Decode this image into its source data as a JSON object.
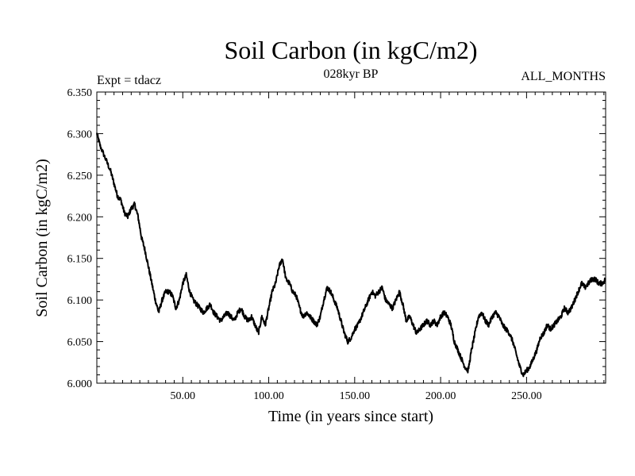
{
  "chart_data": {
    "type": "line",
    "title": "Soil Carbon (in kgC/m2)",
    "subtitle": "028kyr BP",
    "left_note": "Expt = tdacz",
    "right_note": "ALL_MONTHS",
    "xlabel": "Time (in years since start)",
    "ylabel": "Soil Carbon (in kgC/m2)",
    "xlim": [
      0,
      296
    ],
    "ylim": [
      6.0,
      6.35
    ],
    "x_ticks": [
      50,
      100,
      150,
      200,
      250
    ],
    "x_tick_labels": [
      "50.00",
      "100.00",
      "150.00",
      "200.00",
      "250.00"
    ],
    "y_ticks": [
      6.0,
      6.05,
      6.1,
      6.15,
      6.2,
      6.25,
      6.3,
      6.35
    ],
    "y_tick_labels": [
      "6.000",
      "6.050",
      "6.100",
      "6.150",
      "6.200",
      "6.250",
      "6.300",
      "6.350"
    ],
    "grid": false,
    "series": [
      {
        "name": "Soil Carbon",
        "color": "#000000",
        "x": [
          0,
          2,
          5,
          8,
          10,
          12,
          14,
          16,
          18,
          20,
          22,
          24,
          26,
          28,
          30,
          32,
          34,
          36,
          38,
          40,
          42,
          44,
          46,
          48,
          50,
          52,
          54,
          56,
          58,
          60,
          62,
          64,
          66,
          68,
          70,
          72,
          74,
          76,
          78,
          80,
          82,
          84,
          86,
          88,
          90,
          92,
          94,
          96,
          98,
          100,
          102,
          104,
          106,
          108,
          110,
          112,
          114,
          116,
          118,
          120,
          122,
          124,
          126,
          128,
          130,
          132,
          134,
          136,
          138,
          140,
          142,
          144,
          146,
          148,
          150,
          152,
          154,
          156,
          158,
          160,
          162,
          164,
          166,
          168,
          170,
          172,
          174,
          176,
          178,
          180,
          182,
          184,
          186,
          188,
          190,
          192,
          194,
          196,
          198,
          200,
          202,
          204,
          206,
          208,
          210,
          212,
          214,
          216,
          218,
          220,
          222,
          224,
          226,
          228,
          230,
          232,
          234,
          236,
          238,
          240,
          242,
          244,
          246,
          248,
          250,
          252,
          254,
          256,
          258,
          260,
          262,
          264,
          266,
          268,
          270,
          272,
          274,
          276,
          278,
          280,
          282,
          284,
          286,
          288,
          290,
          292,
          294,
          296
        ],
        "y": [
          6.3,
          6.285,
          6.27,
          6.255,
          6.24,
          6.225,
          6.22,
          6.205,
          6.2,
          6.21,
          6.215,
          6.2,
          6.175,
          6.16,
          6.14,
          6.12,
          6.1,
          6.085,
          6.1,
          6.11,
          6.11,
          6.105,
          6.09,
          6.1,
          6.12,
          6.13,
          6.11,
          6.1,
          6.095,
          6.09,
          6.085,
          6.09,
          6.095,
          6.085,
          6.08,
          6.075,
          6.08,
          6.085,
          6.08,
          6.075,
          6.085,
          6.09,
          6.08,
          6.075,
          6.08,
          6.07,
          6.06,
          6.08,
          6.07,
          6.09,
          6.11,
          6.12,
          6.14,
          6.15,
          6.125,
          6.12,
          6.11,
          6.105,
          6.09,
          6.08,
          6.085,
          6.08,
          6.075,
          6.07,
          6.08,
          6.1,
          6.115,
          6.11,
          6.1,
          6.09,
          6.075,
          6.06,
          6.05,
          6.055,
          6.065,
          6.07,
          6.08,
          6.09,
          6.1,
          6.11,
          6.105,
          6.11,
          6.115,
          6.1,
          6.095,
          6.09,
          6.1,
          6.11,
          6.095,
          6.075,
          6.08,
          6.07,
          6.06,
          6.065,
          6.07,
          6.075,
          6.07,
          6.075,
          6.07,
          6.08,
          6.085,
          6.08,
          6.07,
          6.05,
          6.04,
          6.03,
          6.02,
          6.015,
          6.04,
          6.06,
          6.08,
          6.085,
          6.075,
          6.07,
          6.08,
          6.085,
          6.08,
          6.07,
          6.065,
          6.06,
          6.05,
          6.035,
          6.02,
          6.01,
          6.015,
          6.02,
          6.03,
          6.04,
          6.055,
          6.06,
          6.07,
          6.065,
          6.07,
          6.075,
          6.08,
          6.09,
          6.085,
          6.09,
          6.1,
          6.11,
          6.12,
          6.115,
          6.12,
          6.125,
          6.125,
          6.12,
          6.12,
          6.125
        ]
      }
    ]
  }
}
